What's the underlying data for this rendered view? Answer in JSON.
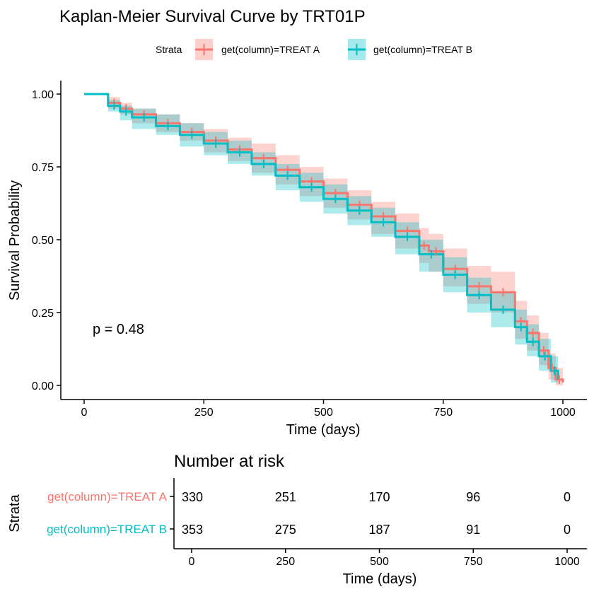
{
  "chart_data": [
    {
      "type": "line",
      "title": "Kaplan-Meier Survival Curve by TRT01P",
      "xlabel": "Time (days)",
      "ylabel": "Survival Probability",
      "xlim": [
        0,
        1000
      ],
      "ylim": [
        0,
        1
      ],
      "x_ticks": [
        0,
        250,
        500,
        750,
        1000
      ],
      "x_tick_labels": [
        "0",
        "250",
        "500",
        "750",
        "1000"
      ],
      "y_ticks": [
        0,
        0.25,
        0.5,
        0.75,
        1
      ],
      "y_tick_labels": [
        "0.00",
        "0.25",
        "0.50",
        "0.75",
        "1.00"
      ],
      "grid": false,
      "legend": {
        "title": "Strata",
        "position": "top",
        "entries": [
          "get(column)=TREAT A",
          "get(column)=TREAT B"
        ]
      },
      "annotation": "p = 0.48",
      "series": [
        {
          "name": "get(column)=TREAT A",
          "color": "#F8766D",
          "x": [
            0,
            30,
            50,
            75,
            100,
            150,
            200,
            250,
            300,
            350,
            400,
            450,
            500,
            550,
            600,
            650,
            700,
            720,
            750,
            800,
            850,
            900,
            925,
            950,
            970,
            985,
            1000
          ],
          "y": [
            1.0,
            1.0,
            0.97,
            0.95,
            0.93,
            0.9,
            0.87,
            0.84,
            0.81,
            0.78,
            0.74,
            0.7,
            0.66,
            0.62,
            0.58,
            0.53,
            0.48,
            0.46,
            0.4,
            0.34,
            0.32,
            0.22,
            0.18,
            0.12,
            0.06,
            0.02,
            0.01
          ],
          "ci_lower": [
            1.0,
            1.0,
            0.95,
            0.93,
            0.9,
            0.87,
            0.84,
            0.8,
            0.77,
            0.73,
            0.69,
            0.65,
            0.61,
            0.57,
            0.52,
            0.47,
            0.42,
            0.39,
            0.34,
            0.28,
            0.25,
            0.16,
            0.12,
            0.07,
            0.02,
            0.0,
            0.0
          ],
          "ci_upper": [
            1.0,
            1.0,
            0.99,
            0.97,
            0.95,
            0.93,
            0.9,
            0.88,
            0.85,
            0.83,
            0.79,
            0.75,
            0.71,
            0.67,
            0.63,
            0.59,
            0.54,
            0.52,
            0.47,
            0.41,
            0.39,
            0.29,
            0.24,
            0.18,
            0.11,
            0.06,
            0.05
          ]
        },
        {
          "name": "get(column)=TREAT B",
          "color": "#00BFC4",
          "x": [
            0,
            30,
            50,
            75,
            100,
            150,
            200,
            250,
            300,
            350,
            400,
            450,
            500,
            550,
            600,
            650,
            700,
            750,
            800,
            850,
            900,
            925,
            950,
            975,
            990
          ],
          "y": [
            1.0,
            1.0,
            0.96,
            0.94,
            0.92,
            0.89,
            0.86,
            0.83,
            0.8,
            0.76,
            0.72,
            0.68,
            0.64,
            0.6,
            0.56,
            0.51,
            0.45,
            0.38,
            0.31,
            0.26,
            0.2,
            0.15,
            0.1,
            0.05,
            0.02
          ],
          "ci_lower": [
            1.0,
            1.0,
            0.94,
            0.91,
            0.88,
            0.86,
            0.82,
            0.79,
            0.76,
            0.72,
            0.67,
            0.63,
            0.59,
            0.55,
            0.51,
            0.45,
            0.39,
            0.32,
            0.25,
            0.2,
            0.14,
            0.1,
            0.05,
            0.01,
            0.0
          ],
          "ci_upper": [
            1.0,
            1.0,
            0.98,
            0.96,
            0.95,
            0.93,
            0.9,
            0.87,
            0.84,
            0.8,
            0.76,
            0.73,
            0.69,
            0.65,
            0.61,
            0.56,
            0.5,
            0.44,
            0.37,
            0.32,
            0.26,
            0.21,
            0.16,
            0.1,
            0.06
          ]
        }
      ]
    },
    {
      "type": "table",
      "title": "Number at risk",
      "ylabel": "Strata",
      "xlabel": "Time (days)",
      "x_ticks": [
        0,
        250,
        500,
        750,
        1000
      ],
      "x_tick_labels": [
        "0",
        "250",
        "500",
        "750",
        "1000"
      ],
      "rows": [
        {
          "label": "get(column)=TREAT A",
          "color": "#F8766D",
          "values": [
            330,
            251,
            170,
            96,
            0
          ]
        },
        {
          "label": "get(column)=TREAT B",
          "color": "#00BFC4",
          "values": [
            353,
            275,
            187,
            91,
            0
          ]
        }
      ]
    }
  ]
}
